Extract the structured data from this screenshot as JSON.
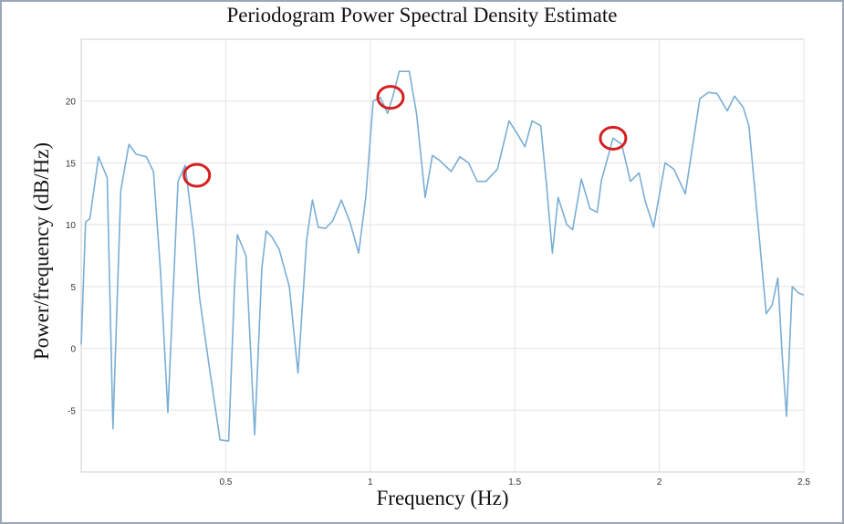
{
  "chart_data": {
    "type": "line",
    "title": "Periodogram Power Spectral Density Estimate",
    "xlabel": "Frequency (Hz)",
    "ylabel": "Power/frequency (dB/Hz)",
    "xlim": [
      0,
      2.5
    ],
    "ylim": [
      -10,
      25
    ],
    "xticks": [
      0.5,
      1,
      1.5,
      2,
      2.5
    ],
    "xtick_labels": [
      "0.5",
      "1",
      "1.5",
      "2",
      "2.5"
    ],
    "yticks": [
      -5,
      0,
      5,
      10,
      15,
      20
    ],
    "ytick_labels": [
      "-5",
      "0",
      "5",
      "10",
      "15",
      "20"
    ],
    "grid": true,
    "line_color": "#7aaed4",
    "marker_color": "#d42020",
    "series": [
      {
        "x": [
          0.0,
          0.015,
          0.03,
          0.06,
          0.09,
          0.11,
          0.137,
          0.165,
          0.19,
          0.225,
          0.25,
          0.275,
          0.3,
          0.335,
          0.36,
          0.39,
          0.41,
          0.44,
          0.48,
          0.51,
          0.53,
          0.54,
          0.57,
          0.6,
          0.625,
          0.64,
          0.66,
          0.685,
          0.72,
          0.75,
          0.78,
          0.8,
          0.82,
          0.845,
          0.87,
          0.9,
          0.93,
          0.96,
          0.985,
          1.01,
          1.035,
          1.06,
          1.08,
          1.1,
          1.135,
          1.16,
          1.19,
          1.215,
          1.24,
          1.28,
          1.31,
          1.34,
          1.37,
          1.4,
          1.44,
          1.48,
          1.51,
          1.535,
          1.56,
          1.59,
          1.61,
          1.63,
          1.65,
          1.68,
          1.7,
          1.73,
          1.76,
          1.785,
          1.8,
          1.84,
          1.87,
          1.9,
          1.93,
          1.95,
          1.98,
          2.02,
          2.05,
          2.07,
          2.09,
          2.14,
          2.17,
          2.2,
          2.235,
          2.26,
          2.29,
          2.31,
          2.33,
          2.37,
          2.39,
          2.41,
          2.425,
          2.44,
          2.46,
          2.48,
          2.5
        ],
        "y": [
          0.3,
          10.2,
          10.5,
          15.5,
          13.8,
          -6.5,
          12.8,
          16.5,
          15.7,
          15.5,
          14.3,
          6.0,
          -5.2,
          13.5,
          14.8,
          9.0,
          4.0,
          -1.0,
          -7.4,
          -7.5,
          4.8,
          9.2,
          7.5,
          -7.0,
          6.5,
          9.5,
          9.0,
          8.0,
          5.0,
          -2.0,
          8.8,
          12.0,
          9.8,
          9.7,
          10.3,
          12.0,
          10.2,
          7.7,
          12.3,
          20.0,
          20.3,
          19.0,
          20.5,
          22.4,
          22.4,
          19.0,
          12.2,
          15.6,
          15.2,
          14.3,
          15.5,
          15.0,
          13.5,
          13.5,
          14.5,
          18.4,
          17.3,
          16.3,
          18.4,
          18.0,
          13.2,
          7.7,
          12.2,
          10.0,
          9.6,
          13.7,
          11.3,
          11.0,
          13.6,
          17.0,
          16.5,
          13.5,
          14.2,
          12.0,
          9.8,
          15.0,
          14.5,
          13.5,
          12.5,
          20.2,
          20.7,
          20.6,
          19.2,
          20.4,
          19.5,
          18.0,
          13.0,
          2.8,
          3.5,
          5.7,
          -0.5,
          -5.5,
          5.0,
          4.5,
          4.3
        ]
      }
    ],
    "highlighted_peaks": [
      {
        "x": 0.4,
        "y": 14.0
      },
      {
        "x": 1.07,
        "y": 20.3
      },
      {
        "x": 1.84,
        "y": 17.0
      }
    ]
  }
}
